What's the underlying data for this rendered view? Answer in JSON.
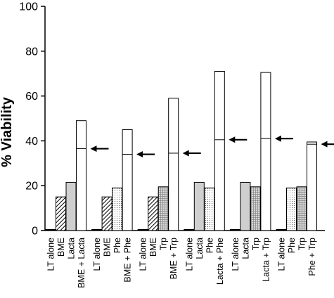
{
  "chart_data": {
    "type": "bar",
    "title": "",
    "xlabel": "",
    "ylabel": "% Viability",
    "ylim": [
      0,
      100
    ],
    "yticks": [
      "0",
      "20",
      "40",
      "60",
      "80",
      "100"
    ],
    "grid": false,
    "legend": "none",
    "groups": [
      {
        "bars": [
          {
            "label": "LT alone",
            "value": 0.5,
            "pattern": "black",
            "line_value": null
          },
          {
            "label": "BME",
            "value": 15,
            "pattern": "hatch",
            "line_value": null
          },
          {
            "label": "Lacta",
            "value": 21.5,
            "pattern": "gray",
            "line_value": null
          },
          {
            "label": "BME + Lacta",
            "value": 49,
            "pattern": "white",
            "line_value": 36.5
          }
        ]
      },
      {
        "bars": [
          {
            "label": "LT alone",
            "value": 0.5,
            "pattern": "black",
            "line_value": null
          },
          {
            "label": "BME",
            "value": 15,
            "pattern": "hatch",
            "line_value": null
          },
          {
            "label": "Phe",
            "value": 19,
            "pattern": "dots",
            "line_value": null
          },
          {
            "label": "BME + Phe",
            "value": 45,
            "pattern": "white",
            "line_value": 34
          }
        ]
      },
      {
        "bars": [
          {
            "label": "LT alone",
            "value": 0.5,
            "pattern": "black",
            "line_value": null
          },
          {
            "label": "BME",
            "value": 15,
            "pattern": "hatch",
            "line_value": null
          },
          {
            "label": "Trp",
            "value": 19.5,
            "pattern": "grid",
            "line_value": null
          },
          {
            "label": "BME + Trp",
            "value": 59,
            "pattern": "white",
            "line_value": 34.5
          }
        ]
      },
      {
        "bars": [
          {
            "label": "LT alone",
            "value": 0.5,
            "pattern": "black",
            "line_value": null
          },
          {
            "label": "Lacta",
            "value": 21.5,
            "pattern": "gray",
            "line_value": null
          },
          {
            "label": "Phe",
            "value": 19,
            "pattern": "dots",
            "line_value": null
          },
          {
            "label": "Lacta + Phe",
            "value": 71,
            "pattern": "white",
            "line_value": 40.5
          }
        ]
      },
      {
        "bars": [
          {
            "label": "LT alone",
            "value": 0.5,
            "pattern": "black",
            "line_value": null
          },
          {
            "label": "Lacta",
            "value": 21.5,
            "pattern": "gray",
            "line_value": null
          },
          {
            "label": "Trp",
            "value": 19.5,
            "pattern": "grid",
            "line_value": null
          },
          {
            "label": "Lacta + Trp",
            "value": 70.5,
            "pattern": "white",
            "line_value": 41
          }
        ]
      },
      {
        "bars": [
          {
            "label": "LT alone",
            "value": 0.5,
            "pattern": "black",
            "line_value": null
          },
          {
            "label": "Phe",
            "value": 19,
            "pattern": "dots",
            "line_value": null
          },
          {
            "label": "Trp",
            "value": 19.5,
            "pattern": "grid",
            "line_value": null
          },
          {
            "label": "Phe + Trp",
            "value": 39.5,
            "pattern": "white",
            "line_value": 38.5
          }
        ]
      }
    ]
  },
  "colors": {
    "bar_outline": "#000000",
    "gray_fill": "#cfcfcf",
    "black_fill": "#000000",
    "white_fill": "#ffffff"
  }
}
